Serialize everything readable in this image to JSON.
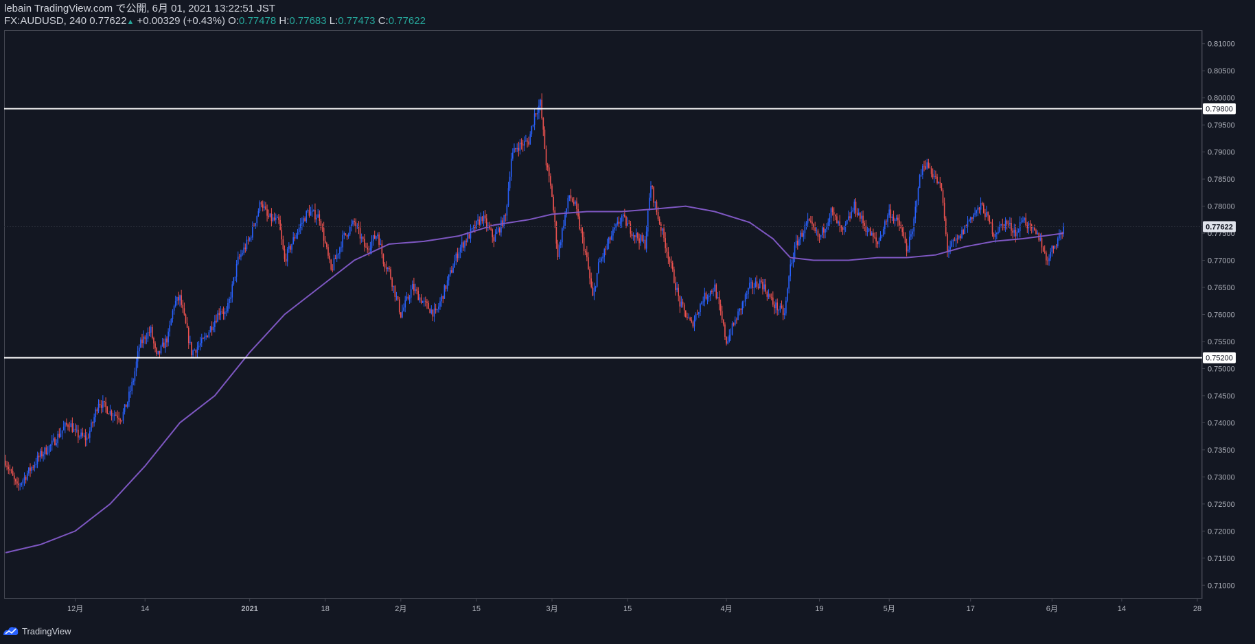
{
  "header": {
    "published": "lebain TradingView.com で公開, 6月 01, 2021 13:22:51 JST",
    "symbol": "FX:AUDUSD, 240",
    "last": "0.77622",
    "change": "+0.00329 (+0.43%)",
    "o_label": "O:",
    "o_val": "0.77478",
    "h_label": "H:",
    "h_val": "0.77683",
    "l_label": "L:",
    "l_val": "0.77473",
    "c_label": "C:",
    "c_val": "0.77622"
  },
  "footer": {
    "brand": "TradingView"
  },
  "colors": {
    "background": "#131722",
    "up": "#2962ff",
    "down": "#ef5350",
    "ma": "#7e57c2",
    "level": "#ffffff",
    "text": "#d1d4dc",
    "accent": "#26a69a"
  },
  "chart_data": {
    "type": "candlestick",
    "title": "FX:AUDUSD, 240",
    "ylim": [
      0.7075,
      0.8125
    ],
    "y_ticks": [
      "0.71000",
      "0.71500",
      "0.72000",
      "0.72500",
      "0.73000",
      "0.73500",
      "0.74000",
      "0.74500",
      "0.75000",
      "0.75500",
      "0.76000",
      "0.76500",
      "0.77000",
      "0.77500",
      "0.78000",
      "0.78500",
      "0.79000",
      "0.79500",
      "0.80000",
      "0.80500",
      "0.81000"
    ],
    "x_range_days": [
      0,
      205
    ],
    "x_ticks": [
      {
        "label": "12月",
        "day": 12
      },
      {
        "label": "14",
        "day": 24
      },
      {
        "label": "2021",
        "day": 42
      },
      {
        "label": "18",
        "day": 55
      },
      {
        "label": "2月",
        "day": 68
      },
      {
        "label": "15",
        "day": 81
      },
      {
        "label": "3月",
        "day": 94
      },
      {
        "label": "15",
        "day": 107
      },
      {
        "label": "4月",
        "day": 124
      },
      {
        "label": "19",
        "day": 140
      },
      {
        "label": "5月",
        "day": 152
      },
      {
        "label": "17",
        "day": 166
      },
      {
        "label": "6月",
        "day": 180
      },
      {
        "label": "14",
        "day": 192
      },
      {
        "label": "28",
        "day": 205
      }
    ],
    "horizontal_levels": [
      {
        "value": 0.798,
        "label": "0.79800"
      },
      {
        "value": 0.752,
        "label": "0.75200"
      }
    ],
    "last_price": {
      "value": 0.77622,
      "label": "0.77622"
    },
    "price_path": [
      [
        0,
        0.733
      ],
      [
        2,
        0.728
      ],
      [
        4,
        0.731
      ],
      [
        6,
        0.734
      ],
      [
        8,
        0.736
      ],
      [
        10,
        0.739
      ],
      [
        11,
        0.74
      ],
      [
        12,
        0.738
      ],
      [
        14,
        0.737
      ],
      [
        15,
        0.74
      ],
      [
        16,
        0.744
      ],
      [
        18,
        0.742
      ],
      [
        20,
        0.741
      ],
      [
        21,
        0.744
      ],
      [
        22,
        0.748
      ],
      [
        23,
        0.754
      ],
      [
        24,
        0.756
      ],
      [
        25,
        0.757
      ],
      [
        26,
        0.752
      ],
      [
        28,
        0.756
      ],
      [
        29,
        0.762
      ],
      [
        30,
        0.763
      ],
      [
        31,
        0.758
      ],
      [
        32,
        0.753
      ],
      [
        33,
        0.754
      ],
      [
        34,
        0.755
      ],
      [
        36,
        0.759
      ],
      [
        37,
        0.761
      ],
      [
        38,
        0.76
      ],
      [
        40,
        0.77
      ],
      [
        42,
        0.774
      ],
      [
        44,
        0.781
      ],
      [
        45,
        0.778
      ],
      [
        47,
        0.777
      ],
      [
        48,
        0.77
      ],
      [
        50,
        0.775
      ],
      [
        52,
        0.779
      ],
      [
        54,
        0.778
      ],
      [
        55,
        0.773
      ],
      [
        56,
        0.768
      ],
      [
        58,
        0.774
      ],
      [
        60,
        0.777
      ],
      [
        62,
        0.772
      ],
      [
        64,
        0.775
      ],
      [
        65,
        0.77
      ],
      [
        66,
        0.768
      ],
      [
        68,
        0.76
      ],
      [
        70,
        0.765
      ],
      [
        72,
        0.762
      ],
      [
        74,
        0.76
      ],
      [
        76,
        0.766
      ],
      [
        78,
        0.772
      ],
      [
        80,
        0.775
      ],
      [
        82,
        0.778
      ],
      [
        84,
        0.774
      ],
      [
        86,
        0.778
      ],
      [
        87,
        0.789
      ],
      [
        88,
        0.791
      ],
      [
        90,
        0.792
      ],
      [
        91,
        0.797
      ],
      [
        92,
        0.799
      ],
      [
        93,
        0.788
      ],
      [
        94,
        0.782
      ],
      [
        95,
        0.771
      ],
      [
        96,
        0.777
      ],
      [
        97,
        0.782
      ],
      [
        98,
        0.78
      ],
      [
        100,
        0.77
      ],
      [
        101,
        0.763
      ],
      [
        102,
        0.769
      ],
      [
        104,
        0.774
      ],
      [
        106,
        0.778
      ],
      [
        108,
        0.775
      ],
      [
        110,
        0.773
      ],
      [
        111,
        0.784
      ],
      [
        112,
        0.779
      ],
      [
        114,
        0.771
      ],
      [
        116,
        0.762
      ],
      [
        118,
        0.758
      ],
      [
        120,
        0.763
      ],
      [
        122,
        0.765
      ],
      [
        124,
        0.755
      ],
      [
        126,
        0.76
      ],
      [
        128,
        0.765
      ],
      [
        130,
        0.766
      ],
      [
        132,
        0.762
      ],
      [
        134,
        0.76
      ],
      [
        135,
        0.769
      ],
      [
        136,
        0.773
      ],
      [
        138,
        0.777
      ],
      [
        140,
        0.774
      ],
      [
        142,
        0.779
      ],
      [
        144,
        0.775
      ],
      [
        146,
        0.78
      ],
      [
        148,
        0.776
      ],
      [
        150,
        0.773
      ],
      [
        152,
        0.779
      ],
      [
        154,
        0.776
      ],
      [
        155,
        0.772
      ],
      [
        156,
        0.775
      ],
      [
        157,
        0.784
      ],
      [
        158,
        0.788
      ],
      [
        159,
        0.787
      ],
      [
        161,
        0.783
      ],
      [
        162,
        0.772
      ],
      [
        164,
        0.774
      ],
      [
        166,
        0.778
      ],
      [
        168,
        0.78
      ],
      [
        170,
        0.775
      ],
      [
        172,
        0.777
      ],
      [
        174,
        0.775
      ],
      [
        175,
        0.778
      ],
      [
        176,
        0.776
      ],
      [
        178,
        0.774
      ],
      [
        179,
        0.77
      ],
      [
        180,
        0.772
      ],
      [
        181,
        0.774
      ],
      [
        182,
        0.776
      ]
    ],
    "ma_path": [
      [
        0,
        0.716
      ],
      [
        6,
        0.7175
      ],
      [
        12,
        0.72
      ],
      [
        18,
        0.725
      ],
      [
        24,
        0.732
      ],
      [
        30,
        0.74
      ],
      [
        36,
        0.745
      ],
      [
        42,
        0.753
      ],
      [
        48,
        0.76
      ],
      [
        54,
        0.765
      ],
      [
        60,
        0.77
      ],
      [
        66,
        0.773
      ],
      [
        72,
        0.7735
      ],
      [
        78,
        0.7745
      ],
      [
        84,
        0.7765
      ],
      [
        90,
        0.7775
      ],
      [
        94,
        0.7785
      ],
      [
        100,
        0.779
      ],
      [
        106,
        0.779
      ],
      [
        112,
        0.7795
      ],
      [
        117,
        0.78
      ],
      [
        122,
        0.779
      ],
      [
        128,
        0.777
      ],
      [
        132,
        0.774
      ],
      [
        135,
        0.7705
      ],
      [
        139,
        0.77
      ],
      [
        145,
        0.77
      ],
      [
        150,
        0.7705
      ],
      [
        155,
        0.7705
      ],
      [
        160,
        0.771
      ],
      [
        165,
        0.7725
      ],
      [
        170,
        0.7735
      ],
      [
        175,
        0.774
      ],
      [
        182,
        0.775
      ]
    ]
  }
}
